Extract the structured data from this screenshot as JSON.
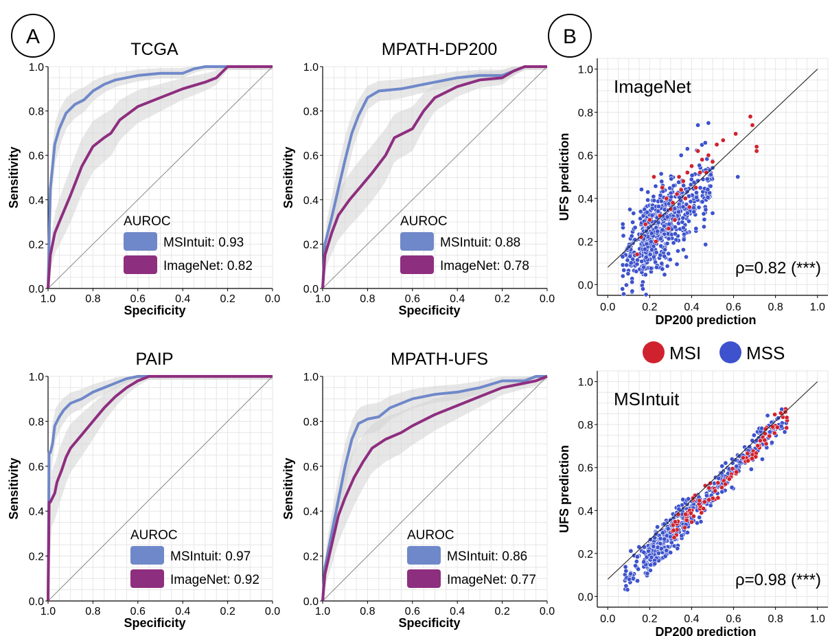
{
  "panels": {
    "A": "A",
    "B": "B"
  },
  "colors": {
    "msintuit": "#6f88c9",
    "imagenet": "#8e2e7f",
    "band": "#d3d3d3",
    "msi": "#d0222e",
    "mss": "#3d52cc",
    "grid": "#e6e6e6"
  },
  "roc_legend_title": "AUROC",
  "scatter_legend": {
    "msi": "MSI",
    "mss": "MSS"
  },
  "chart_data": [
    {
      "type": "line",
      "title": "TCGA",
      "xlabel": "Specificity",
      "ylabel": "Sensitivity",
      "xlim": [
        1.0,
        0.0
      ],
      "ylim": [
        0.0,
        1.0
      ],
      "xticks": [
        "1.0",
        "0.8",
        "0.6",
        "0.4",
        "0.2",
        "0.0"
      ],
      "yticks": [
        "0.0",
        "0.2",
        "0.4",
        "0.6",
        "0.8",
        "1.0"
      ],
      "legend_title": "AUROC",
      "legend_position": "lower-center",
      "series": [
        {
          "name": "MSIntuit",
          "legend": "MSIntuit: 0.93",
          "x": [
            1.0,
            0.99,
            0.97,
            0.95,
            0.92,
            0.88,
            0.84,
            0.8,
            0.75,
            0.7,
            0.6,
            0.5,
            0.4,
            0.35,
            0.3,
            0.2,
            0.1,
            0.0
          ],
          "y": [
            0.0,
            0.45,
            0.65,
            0.72,
            0.79,
            0.83,
            0.85,
            0.89,
            0.92,
            0.94,
            0.96,
            0.97,
            0.97,
            0.99,
            1.0,
            1.0,
            1.0,
            1.0
          ]
        },
        {
          "name": "ImageNet",
          "legend": "ImageNet: 0.82",
          "x": [
            1.0,
            0.99,
            0.97,
            0.95,
            0.9,
            0.85,
            0.8,
            0.75,
            0.72,
            0.68,
            0.6,
            0.5,
            0.4,
            0.3,
            0.25,
            0.22,
            0.2,
            0.1,
            0.0
          ],
          "y": [
            0.0,
            0.15,
            0.25,
            0.3,
            0.42,
            0.55,
            0.64,
            0.68,
            0.7,
            0.76,
            0.82,
            0.86,
            0.9,
            0.93,
            0.95,
            0.98,
            1.0,
            1.0,
            1.0
          ]
        }
      ]
    },
    {
      "type": "line",
      "title": "MPATH-DP200",
      "xlabel": "Specificity",
      "ylabel": "Sensitivity",
      "xlim": [
        1.0,
        0.0
      ],
      "ylim": [
        0.0,
        1.0
      ],
      "xticks": [
        "1.0",
        "0.8",
        "0.6",
        "0.4",
        "0.2",
        "0.0"
      ],
      "yticks": [
        "0.0",
        "0.2",
        "0.4",
        "0.6",
        "0.8",
        "1.0"
      ],
      "legend_title": "AUROC",
      "legend_position": "lower-center",
      "series": [
        {
          "name": "MSIntuit",
          "legend": "MSIntuit: 0.88",
          "x": [
            1.0,
            0.99,
            0.96,
            0.93,
            0.9,
            0.87,
            0.84,
            0.8,
            0.75,
            0.65,
            0.6,
            0.5,
            0.4,
            0.3,
            0.2,
            0.15,
            0.1,
            0.0
          ],
          "y": [
            0.0,
            0.2,
            0.32,
            0.45,
            0.58,
            0.7,
            0.78,
            0.86,
            0.89,
            0.9,
            0.91,
            0.93,
            0.95,
            0.96,
            0.96,
            0.98,
            1.0,
            1.0
          ]
        },
        {
          "name": "ImageNet",
          "legend": "ImageNet: 0.78",
          "x": [
            1.0,
            0.99,
            0.96,
            0.93,
            0.88,
            0.83,
            0.78,
            0.72,
            0.68,
            0.6,
            0.55,
            0.5,
            0.4,
            0.3,
            0.2,
            0.15,
            0.1,
            0.0
          ],
          "y": [
            0.0,
            0.15,
            0.25,
            0.33,
            0.4,
            0.46,
            0.52,
            0.6,
            0.68,
            0.72,
            0.8,
            0.86,
            0.91,
            0.94,
            0.95,
            0.98,
            1.0,
            1.0
          ]
        }
      ]
    },
    {
      "type": "line",
      "title": "PAIP",
      "xlabel": "Specificity",
      "ylabel": "Sensitivity",
      "xlim": [
        1.0,
        0.0
      ],
      "ylim": [
        0.0,
        1.0
      ],
      "xticks": [
        "1.0",
        "0.8",
        "0.6",
        "0.4",
        "0.2",
        "0.0"
      ],
      "yticks": [
        "0.0",
        "0.2",
        "0.4",
        "0.6",
        "0.8",
        "1.0"
      ],
      "legend_title": "AUROC",
      "legend_position": "lower-center",
      "series": [
        {
          "name": "MSIntuit",
          "legend": "MSIntuit: 0.97",
          "x": [
            1.0,
            0.995,
            0.99,
            0.98,
            0.97,
            0.95,
            0.93,
            0.9,
            0.85,
            0.8,
            0.75,
            0.7,
            0.65,
            0.6,
            0.5,
            0.4,
            0.2,
            0.0
          ],
          "y": [
            0.0,
            0.66,
            0.66,
            0.7,
            0.78,
            0.82,
            0.85,
            0.88,
            0.9,
            0.93,
            0.95,
            0.97,
            0.99,
            1.0,
            1.0,
            1.0,
            1.0,
            1.0
          ]
        },
        {
          "name": "ImageNet",
          "legend": "ImageNet: 0.92",
          "x": [
            1.0,
            0.995,
            0.99,
            0.97,
            0.96,
            0.94,
            0.92,
            0.9,
            0.85,
            0.8,
            0.75,
            0.7,
            0.65,
            0.6,
            0.55,
            0.5,
            0.4,
            0.2,
            0.0
          ],
          "y": [
            0.0,
            0.44,
            0.44,
            0.48,
            0.53,
            0.58,
            0.64,
            0.68,
            0.74,
            0.8,
            0.86,
            0.91,
            0.95,
            0.98,
            1.0,
            1.0,
            1.0,
            1.0,
            1.0
          ]
        }
      ]
    },
    {
      "type": "line",
      "title": "MPATH-UFS",
      "xlabel": "Specificity",
      "ylabel": "Sensitivity",
      "xlim": [
        1.0,
        0.0
      ],
      "ylim": [
        0.0,
        1.0
      ],
      "xticks": [
        "1.0",
        "0.8",
        "0.6",
        "0.4",
        "0.2",
        "0.0"
      ],
      "yticks": [
        "0.0",
        "0.2",
        "0.4",
        "0.6",
        "0.8",
        "1.0"
      ],
      "legend_title": "AUROC",
      "legend_position": "lower-center",
      "series": [
        {
          "name": "MSIntuit",
          "legend": "MSIntuit: 0.86",
          "x": [
            1.0,
            0.99,
            0.96,
            0.93,
            0.9,
            0.87,
            0.84,
            0.8,
            0.75,
            0.7,
            0.6,
            0.5,
            0.4,
            0.3,
            0.2,
            0.1,
            0.05,
            0.0
          ],
          "y": [
            0.0,
            0.15,
            0.3,
            0.45,
            0.6,
            0.72,
            0.79,
            0.81,
            0.82,
            0.86,
            0.9,
            0.92,
            0.93,
            0.95,
            0.98,
            0.98,
            1.0,
            1.0
          ]
        },
        {
          "name": "ImageNet",
          "legend": "ImageNet: 0.77",
          "x": [
            1.0,
            0.99,
            0.96,
            0.93,
            0.9,
            0.86,
            0.82,
            0.78,
            0.72,
            0.65,
            0.6,
            0.5,
            0.4,
            0.3,
            0.2,
            0.1,
            0.05,
            0.0
          ],
          "y": [
            0.0,
            0.12,
            0.25,
            0.38,
            0.46,
            0.55,
            0.62,
            0.68,
            0.72,
            0.75,
            0.78,
            0.83,
            0.87,
            0.91,
            0.95,
            0.97,
            0.98,
            1.0
          ]
        }
      ]
    },
    {
      "type": "scatter",
      "title": "ImageNet",
      "xlabel": "DP200 prediction",
      "ylabel": "UFS prediction",
      "xlim": [
        -0.05,
        1.05
      ],
      "ylim": [
        -0.05,
        1.05
      ],
      "xticks": [
        "0.0",
        "0.2",
        "0.4",
        "0.6",
        "0.8",
        "1.0"
      ],
      "yticks": [
        "0.0",
        "0.2",
        "0.4",
        "0.6",
        "0.8",
        "1.0"
      ],
      "annotation": "ρ=0.82 (***)",
      "series": [
        {
          "name": "MSI",
          "points": [
            [
              0.68,
              0.78
            ],
            [
              0.69,
              0.74
            ],
            [
              0.71,
              0.64
            ],
            [
              0.71,
              0.62
            ],
            [
              0.61,
              0.7
            ],
            [
              0.55,
              0.67
            ],
            [
              0.52,
              0.65
            ],
            [
              0.48,
              0.6
            ],
            [
              0.45,
              0.58
            ],
            [
              0.43,
              0.62
            ],
            [
              0.4,
              0.55
            ],
            [
              0.38,
              0.52
            ],
            [
              0.36,
              0.48
            ],
            [
              0.35,
              0.44
            ],
            [
              0.33,
              0.42
            ],
            [
              0.31,
              0.38
            ],
            [
              0.3,
              0.35
            ],
            [
              0.28,
              0.4
            ],
            [
              0.26,
              0.45
            ],
            [
              0.22,
              0.5
            ],
            [
              0.2,
              0.3
            ],
            [
              0.18,
              0.28
            ],
            [
              0.16,
              0.22
            ],
            [
              0.14,
              0.14
            ],
            [
              0.25,
              0.32
            ],
            [
              0.32,
              0.3
            ],
            [
              0.37,
              0.4
            ],
            [
              0.42,
              0.45
            ],
            [
              0.47,
              0.52
            ],
            [
              0.5,
              0.57
            ],
            [
              0.39,
              0.36
            ],
            [
              0.34,
              0.5
            ],
            [
              0.44,
              0.52
            ],
            [
              0.29,
              0.26
            ],
            [
              0.23,
              0.2
            ]
          ]
        },
        {
          "name": "MSS",
          "generated": true,
          "n": 620,
          "x_range": [
            0.06,
            0.5
          ],
          "slope": 0.82,
          "intercept": 0.06,
          "spread": 0.09,
          "extras": [
            [
              0.48,
              0.75
            ],
            [
              0.43,
              0.74
            ],
            [
              0.62,
              0.5
            ],
            [
              0.38,
              0.63
            ],
            [
              0.35,
              0.6
            ]
          ]
        }
      ]
    },
    {
      "type": "scatter",
      "title": "MSIntuit",
      "xlabel": "DP200 prediction",
      "ylabel": "UFS prediction",
      "xlim": [
        -0.05,
        1.05
      ],
      "ylim": [
        -0.05,
        1.05
      ],
      "xticks": [
        "0.0",
        "0.2",
        "0.4",
        "0.6",
        "0.8",
        "1.0"
      ],
      "yticks": [
        "0.0",
        "0.2",
        "0.4",
        "0.6",
        "0.8",
        "1.0"
      ],
      "annotation": "ρ=0.98 (***)",
      "series": [
        {
          "name": "MSI",
          "generated": true,
          "n": 90,
          "x_range": [
            0.3,
            0.86
          ],
          "slope": 0.98,
          "intercept": 0.0,
          "spread": 0.03
        },
        {
          "name": "MSS",
          "generated": true,
          "n": 620,
          "x_range": [
            0.08,
            0.86
          ],
          "slope": 0.98,
          "intercept": 0.0,
          "spread": 0.035
        }
      ]
    }
  ]
}
